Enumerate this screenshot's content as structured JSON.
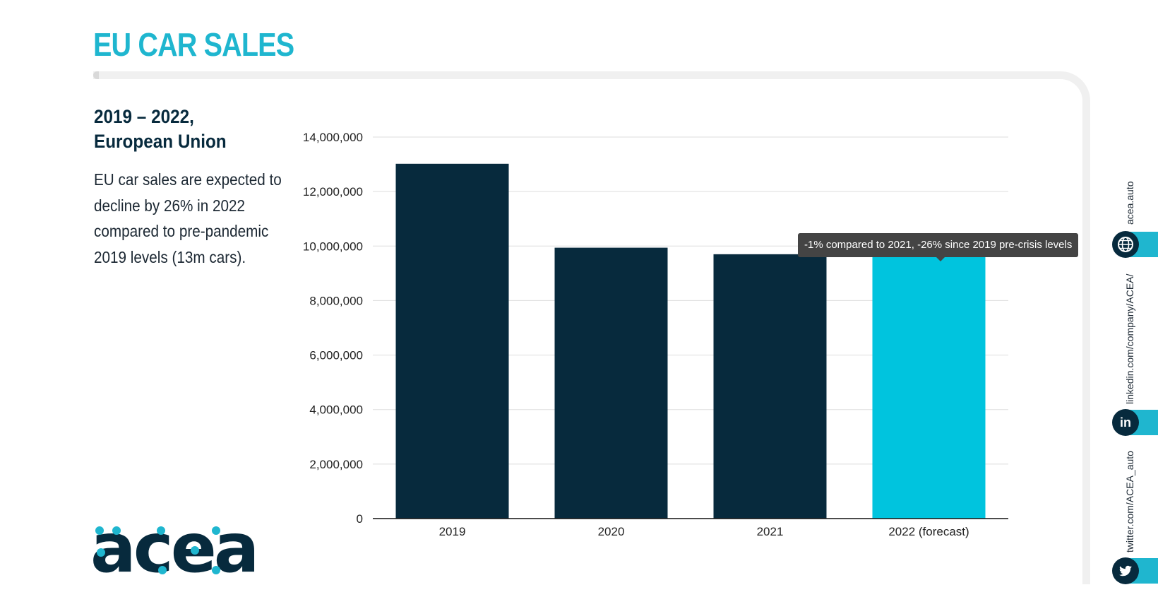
{
  "header": {
    "title": "EU CAR SALES"
  },
  "sidebar": {
    "subtitle_line1": "2019 – 2022,",
    "subtitle_line2": "European Union",
    "description": "EU car sales are expected to decline by 26% in 2022 compared to pre-pandemic 2019 levels (13m cars)."
  },
  "chart_data": {
    "type": "bar",
    "categories": [
      "2019",
      "2020",
      "2021",
      "2022 (forecast)"
    ],
    "values": [
      13020000,
      9940000,
      9700000,
      9600000
    ],
    "highlight_index": 3,
    "ylim": [
      0,
      14000000
    ],
    "yticks": [
      0,
      2000000,
      4000000,
      6000000,
      8000000,
      10000000,
      12000000,
      14000000
    ],
    "ytick_labels": [
      "0",
      "2,000,000",
      "4,000,000",
      "6,000,000",
      "8,000,000",
      "10,000,000",
      "12,000,000",
      "14,000,000"
    ],
    "grid": true,
    "colors": {
      "bar": "#072a3d",
      "highlight": "#00c4de",
      "grid": "#dddddd"
    },
    "annotation": "-1% compared to 2021, -26% since 2019 pre-crisis levels"
  },
  "brand": {
    "logo_text": "acea",
    "colors": {
      "dark": "#072a3d",
      "accent": "#1fb6cf"
    }
  },
  "social": {
    "website": "acea.auto",
    "linkedin": "linkedin.com/company/ACEA/",
    "twitter": "twitter.com/ACEA_auto",
    "icons": [
      "globe-icon",
      "linkedin-icon",
      "twitter-icon"
    ]
  }
}
